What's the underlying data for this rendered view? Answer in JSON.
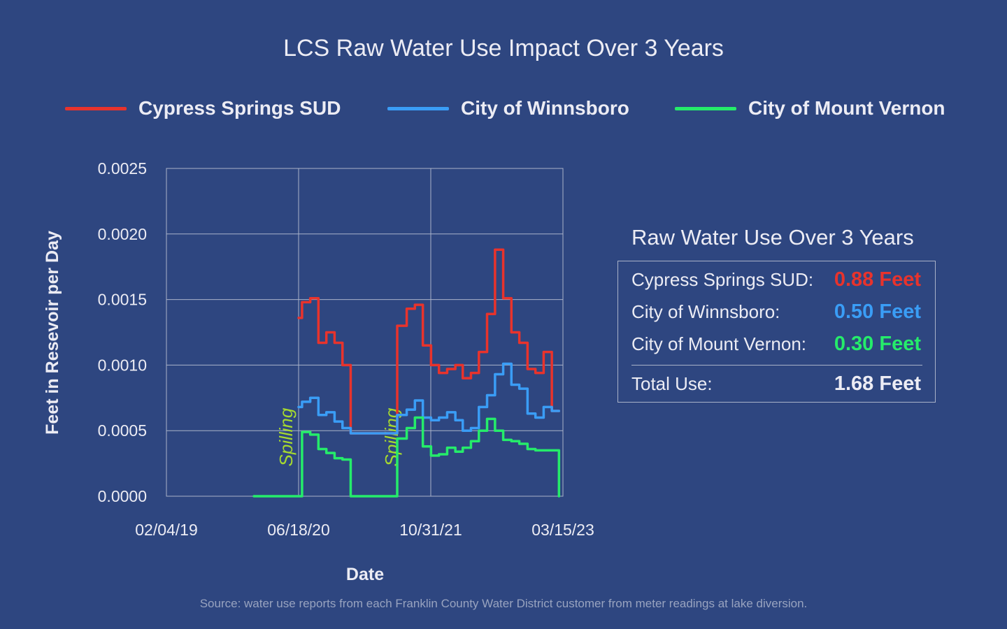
{
  "title": "LCS Raw Water Use Impact Over 3 Years",
  "legend": [
    {
      "label": "Cypress Springs SUD",
      "color": "#e8332c"
    },
    {
      "label": "City of Winnsboro",
      "color": "#3a9df6"
    },
    {
      "label": "City of Mount Vernon",
      "color": "#25ec6a"
    }
  ],
  "summary": {
    "title": "Raw Water Use Over 3 Years",
    "rows": [
      {
        "label": "Cypress Springs SUD:",
        "value": "0.88 Feet",
        "color": "#e8332c"
      },
      {
        "label": "City of Winnsboro:",
        "value": "0.50 Feet",
        "color": "#3a9df6"
      },
      {
        "label": "City of Mount Vernon:",
        "value": "0.30 Feet",
        "color": "#25ec6a"
      }
    ],
    "total_label": "Total Use:",
    "total_value": "1.68 Feet",
    "total_color": "#ececf4"
  },
  "source": "Source: water use reports from each Franklin County Water District customer from meter readings at lake diversion.",
  "chart_data": {
    "type": "line",
    "step": true,
    "xlabel": "Date",
    "ylabel": "Feet in Resevoir per Day",
    "ylim": [
      0,
      0.0025
    ],
    "yticks": [
      "0.0000",
      "0.0005",
      "0.0010",
      "0.0015",
      "0.0020",
      "0.0025"
    ],
    "xlim": [
      "2019-02-04",
      "2023-03-15"
    ],
    "xticks": [
      "02/04/19",
      "06/18/20",
      "10/31/21",
      "03/15/23"
    ],
    "grid": true,
    "annotations": [
      {
        "text": "Spilling",
        "date": "2020-05-25",
        "y": 0.00045,
        "color": "#a6d92f"
      },
      {
        "text": "Spilling",
        "date": "2021-06-28",
        "y": 0.00045,
        "color": "#a6d92f"
      }
    ],
    "series": [
      {
        "name": "Cypress Springs SUD",
        "color": "#e8332c",
        "x": [
          "2020-06-18",
          "2020-07-01",
          "2020-08-01",
          "2020-09-01",
          "2020-10-01",
          "2020-11-01",
          "2020-12-01",
          "2021-01-01",
          "2021-02-01",
          "2021-03-05",
          "2021-06-26",
          "2021-08-01",
          "2021-09-01",
          "2021-10-01",
          "2021-11-01",
          "2021-12-01",
          "2022-01-01",
          "2022-02-01",
          "2022-03-01",
          "2022-04-01",
          "2022-05-01",
          "2022-06-01",
          "2022-07-01",
          "2022-08-01",
          "2022-09-01",
          "2022-10-01",
          "2022-11-01",
          "2022-12-01",
          "2023-01-01",
          "2023-02-01",
          "2023-02-28"
        ],
        "y": [
          0.00136,
          0.00148,
          0.00151,
          0.00117,
          0.00125,
          0.00117,
          0.001,
          0.00048,
          0.00048,
          0.00048,
          0.0013,
          0.00143,
          0.00146,
          0.00115,
          0.001,
          0.00094,
          0.00097,
          0.001,
          0.0009,
          0.00094,
          0.0011,
          0.00139,
          0.00188,
          0.00151,
          0.00125,
          0.00117,
          0.00097,
          0.00094,
          0.0011,
          0.00065,
          0.00065
        ]
      },
      {
        "name": "City of Winnsboro",
        "color": "#3a9df6",
        "x": [
          "2020-06-18",
          "2020-07-01",
          "2020-08-01",
          "2020-09-01",
          "2020-10-01",
          "2020-11-01",
          "2020-12-01",
          "2021-01-01",
          "2021-02-01",
          "2021-03-05",
          "2021-06-26",
          "2021-08-01",
          "2021-09-01",
          "2021-10-01",
          "2021-11-01",
          "2021-12-01",
          "2022-01-01",
          "2022-02-01",
          "2022-03-01",
          "2022-04-01",
          "2022-05-01",
          "2022-06-01",
          "2022-07-01",
          "2022-08-01",
          "2022-09-01",
          "2022-10-01",
          "2022-11-01",
          "2022-12-01",
          "2023-01-01",
          "2023-02-01",
          "2023-02-28"
        ],
        "y": [
          0.00068,
          0.00072,
          0.00075,
          0.00062,
          0.00064,
          0.00057,
          0.00052,
          0.00048,
          0.00048,
          0.00048,
          0.00062,
          0.00066,
          0.00073,
          0.0006,
          0.00058,
          0.0006,
          0.00064,
          0.00058,
          0.0005,
          0.00052,
          0.00068,
          0.00077,
          0.00093,
          0.00101,
          0.00085,
          0.00082,
          0.00063,
          0.0006,
          0.00068,
          0.00065,
          0.00065
        ]
      },
      {
        "name": "City of Mount Vernon",
        "color": "#25ec6a",
        "x": [
          "2020-01-01",
          "2020-06-18",
          "2020-07-01",
          "2020-08-01",
          "2020-09-01",
          "2020-10-01",
          "2020-11-01",
          "2020-12-01",
          "2021-01-01",
          "2021-02-01",
          "2021-03-05",
          "2021-06-26",
          "2021-08-01",
          "2021-09-01",
          "2021-10-01",
          "2021-11-01",
          "2021-12-01",
          "2022-01-01",
          "2022-02-01",
          "2022-03-01",
          "2022-04-01",
          "2022-05-01",
          "2022-06-01",
          "2022-07-01",
          "2022-08-01",
          "2022-09-01",
          "2022-10-01",
          "2022-11-01",
          "2022-12-01",
          "2023-01-01",
          "2023-02-01",
          "2023-02-28"
        ],
        "y": [
          0.0,
          0.0,
          0.00049,
          0.00047,
          0.00036,
          0.00033,
          0.00029,
          0.00028,
          0.0,
          0.0,
          0.0,
          0.00044,
          0.00052,
          0.0006,
          0.00038,
          0.00031,
          0.00032,
          0.00037,
          0.00034,
          0.00037,
          0.00042,
          0.0005,
          0.00059,
          0.0005,
          0.00043,
          0.00042,
          0.0004,
          0.00036,
          0.00035,
          0.00035,
          0.00035,
          0.0
        ]
      }
    ]
  }
}
